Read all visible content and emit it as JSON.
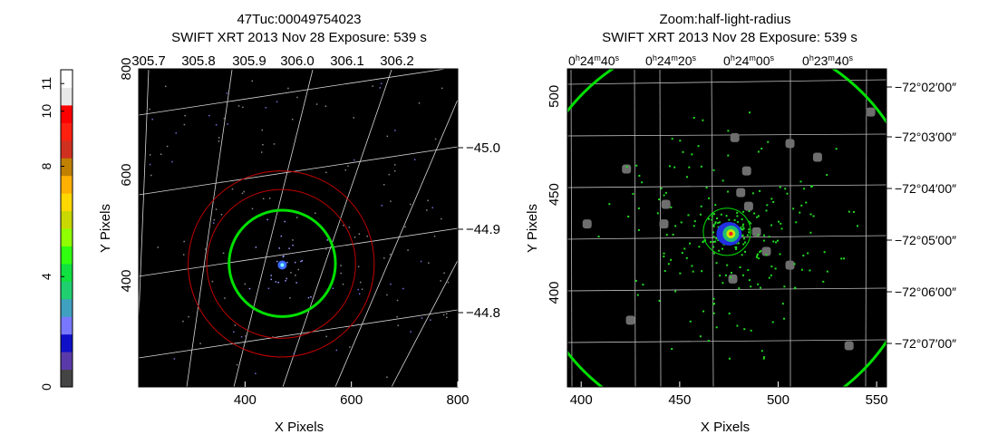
{
  "colorbar": {
    "ticks": [
      "0",
      "4",
      "8",
      "10",
      "11"
    ],
    "tick_values": [
      0,
      4,
      8,
      10,
      11
    ],
    "range": [
      0,
      11.5
    ],
    "colors": [
      "#444444",
      "#5a3aa8",
      "#1010c8",
      "#7878ff",
      "#3fa0c0",
      "#20d070",
      "#10e040",
      "#30ff10",
      "#90ff00",
      "#c8d800",
      "#ffd800",
      "#ffb000",
      "#c08000",
      "#d03020",
      "#ff2010",
      "#ff0000",
      "#e8e8e8",
      "#ffffff"
    ]
  },
  "panels": [
    {
      "title_line1": "47Tuc:00049754023",
      "title_line2": "SWIFT XRT   2013 Nov 28    Exposure: 539 s",
      "xlabel": "X Pixels",
      "ylabel": "Y Pixels",
      "xlim": [
        200,
        800
      ],
      "ylim": [
        200,
        800
      ],
      "x_ticks": [
        400,
        600,
        800
      ],
      "y_ticks": [
        400,
        600,
        800
      ],
      "top_ticks": [
        "305.7",
        "305.8",
        "305.9",
        "306.0",
        "306.1",
        "306.2"
      ],
      "right_ticks": [
        "-45.0",
        "-44.9",
        "-44.8"
      ],
      "circles": [
        {
          "color": "#00e000",
          "cx": 470,
          "cy": 433,
          "r": 100,
          "kind": "green"
        },
        {
          "color": "#c00000",
          "cx": 468,
          "cy": 432,
          "r": 140,
          "kind": "red"
        },
        {
          "color": "#c00000",
          "cx": 468,
          "cy": 432,
          "r": 175,
          "kind": "red"
        }
      ],
      "source": {
        "x": 470,
        "y": 430
      }
    },
    {
      "title_line1": "Zoom:half-light-radius",
      "title_line2": "SWIFT XRT   2013 Nov 28    Exposure: 539 s",
      "xlabel": "X Pixels",
      "ylabel": "Y Pixels",
      "xlim": [
        393,
        555
      ],
      "ylim": [
        352,
        514
      ],
      "x_ticks": [
        400,
        450,
        500,
        550
      ],
      "y_ticks": [
        400,
        450,
        500
      ],
      "top_ticks": [
        "0h24m40s",
        "0h24m20s",
        "0h24m00s",
        "0h23m40s"
      ],
      "right_ticks": [
        "-72°02'00\"",
        "-72°03'00\"",
        "-72°04'00\"",
        "-72°05'00\"",
        "-72°06'00\"",
        "-72°07'00\""
      ],
      "circles": [
        {
          "color": "#00e000",
          "cx": 472,
          "cy": 431,
          "r": 100,
          "kind": "green"
        },
        {
          "color": "#00e000",
          "cx": 474,
          "cy": 431,
          "r": 12,
          "kind": "green-small"
        }
      ],
      "source": {
        "x": 476,
        "y": 430
      },
      "gray_sources": [
        {
          "x": 403,
          "y": 435
        },
        {
          "x": 423,
          "y": 463
        },
        {
          "x": 425,
          "y": 386
        },
        {
          "x": 443,
          "y": 445
        },
        {
          "x": 442,
          "y": 435
        },
        {
          "x": 478,
          "y": 479
        },
        {
          "x": 484,
          "y": 462
        },
        {
          "x": 481,
          "y": 451
        },
        {
          "x": 485,
          "y": 444
        },
        {
          "x": 489,
          "y": 431
        },
        {
          "x": 506,
          "y": 476
        },
        {
          "x": 520,
          "y": 469
        },
        {
          "x": 506,
          "y": 414
        },
        {
          "x": 477,
          "y": 407
        },
        {
          "x": 494,
          "y": 421
        },
        {
          "x": 547,
          "y": 492
        },
        {
          "x": 536,
          "y": 373
        }
      ]
    }
  ]
}
